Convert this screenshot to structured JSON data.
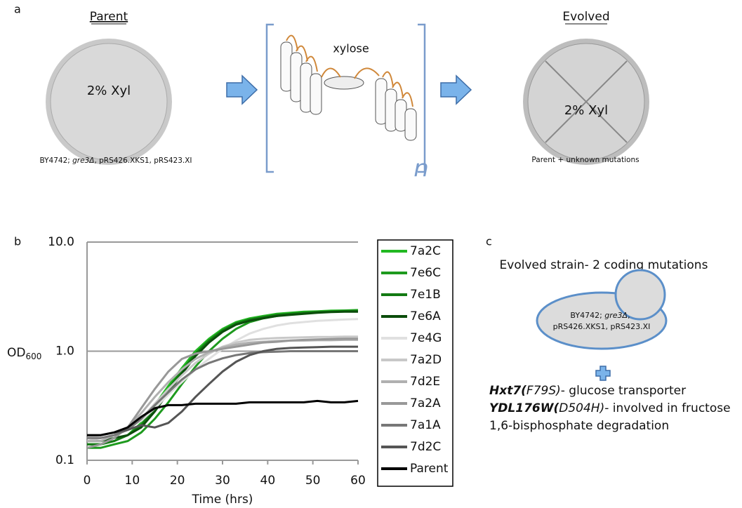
{
  "panel_a": {
    "label": "a",
    "parent_title": "Parent",
    "parent_plate": "2% Xyl",
    "parent_caption": [
      "BY4742; ",
      "gre3Δ",
      ", pRS426.XKS1, pRS423.XI"
    ],
    "transfer_label": "xylose",
    "repeat_symbol": "n",
    "evolved_title": "Evolved",
    "evolved_plate": "2% Xyl",
    "evolved_caption": "Parent + unknown mutations"
  },
  "panel_b": {
    "label": "b"
  },
  "chart_data": {
    "type": "line",
    "x_label": "Time (hrs)",
    "y_label": {
      "text": "OD",
      "subscript": "600"
    },
    "yscale": "log",
    "grid": true,
    "legend": "right",
    "xlim": [
      0,
      60
    ],
    "xticks": [
      0,
      10,
      20,
      30,
      40,
      50,
      60
    ],
    "ylim": [
      0.1,
      10
    ],
    "yticks": [
      0.1,
      {
        "value": 1,
        "label": "1.0"
      },
      {
        "value": 10,
        "label": "10.0"
      }
    ],
    "x": [
      0,
      3,
      6,
      9,
      12,
      15,
      18,
      21,
      24,
      27,
      30,
      33,
      36,
      39,
      42,
      45,
      48,
      51,
      54,
      57,
      60
    ],
    "series": [
      {
        "name": "7a2C",
        "color": "#22b822",
        "values": [
          0.14,
          0.14,
          0.15,
          0.17,
          0.22,
          0.32,
          0.48,
          0.7,
          1.0,
          1.3,
          1.6,
          1.85,
          2.0,
          2.1,
          2.2,
          2.25,
          2.3,
          2.32,
          2.35,
          2.36,
          2.38
        ]
      },
      {
        "name": "7e6C",
        "color": "#1e9a1e",
        "values": [
          0.13,
          0.13,
          0.14,
          0.15,
          0.18,
          0.24,
          0.34,
          0.5,
          0.72,
          1.0,
          1.3,
          1.6,
          1.85,
          2.0,
          2.1,
          2.2,
          2.25,
          2.3,
          2.32,
          2.35,
          2.37
        ]
      },
      {
        "name": "7e1B",
        "color": "#137a13",
        "values": [
          0.14,
          0.14,
          0.15,
          0.17,
          0.21,
          0.3,
          0.45,
          0.66,
          0.95,
          1.25,
          1.55,
          1.8,
          1.95,
          2.05,
          2.15,
          2.2,
          2.25,
          2.28,
          2.3,
          2.32,
          2.33
        ]
      },
      {
        "name": "7e6A",
        "color": "#0b4d0b",
        "values": [
          0.15,
          0.15,
          0.16,
          0.17,
          0.2,
          0.28,
          0.42,
          0.62,
          0.9,
          1.2,
          1.5,
          1.75,
          1.9,
          2.0,
          2.1,
          2.15,
          2.2,
          2.25,
          2.28,
          2.3,
          2.3
        ]
      },
      {
        "name": "7e4G",
        "color": "#e0e0e0",
        "values": [
          0.16,
          0.17,
          0.18,
          0.2,
          0.23,
          0.3,
          0.4,
          0.52,
          0.68,
          0.85,
          1.05,
          1.25,
          1.45,
          1.6,
          1.72,
          1.8,
          1.85,
          1.9,
          1.92,
          1.95,
          1.97
        ]
      },
      {
        "name": "7a2D",
        "color": "#c8c8c8",
        "values": [
          0.15,
          0.16,
          0.17,
          0.19,
          0.24,
          0.33,
          0.45,
          0.6,
          0.78,
          0.95,
          1.1,
          1.2,
          1.27,
          1.3,
          1.32,
          1.33,
          1.34,
          1.35,
          1.35,
          1.36,
          1.36
        ]
      },
      {
        "name": "7d2E",
        "color": "#b0b0b0",
        "values": [
          0.15,
          0.15,
          0.17,
          0.2,
          0.27,
          0.38,
          0.52,
          0.68,
          0.85,
          0.98,
          1.08,
          1.15,
          1.2,
          1.22,
          1.24,
          1.25,
          1.25,
          1.26,
          1.26,
          1.27,
          1.27
        ]
      },
      {
        "name": "7a2A",
        "color": "#989898",
        "values": [
          0.13,
          0.14,
          0.16,
          0.2,
          0.3,
          0.45,
          0.65,
          0.85,
          0.95,
          1.0,
          1.05,
          1.1,
          1.15,
          1.2,
          1.22,
          1.25,
          1.27,
          1.28,
          1.29,
          1.3,
          1.3
        ]
      },
      {
        "name": "7a1A",
        "color": "#777777",
        "values": [
          0.16,
          0.16,
          0.17,
          0.19,
          0.24,
          0.32,
          0.42,
          0.55,
          0.68,
          0.78,
          0.86,
          0.92,
          0.96,
          0.98,
          0.99,
          1.0,
          1.0,
          1.0,
          1.0,
          1.0,
          1.0
        ]
      },
      {
        "name": "7d2C",
        "color": "#555555",
        "values": [
          0.17,
          0.17,
          0.18,
          0.19,
          0.21,
          0.2,
          0.22,
          0.28,
          0.38,
          0.5,
          0.65,
          0.8,
          0.92,
          1.0,
          1.05,
          1.07,
          1.08,
          1.09,
          1.1,
          1.1,
          1.1
        ]
      },
      {
        "name": "Parent",
        "color": "#000000",
        "values": [
          0.17,
          0.17,
          0.18,
          0.2,
          0.25,
          0.3,
          0.32,
          0.32,
          0.33,
          0.33,
          0.33,
          0.33,
          0.34,
          0.34,
          0.34,
          0.34,
          0.34,
          0.35,
          0.34,
          0.34,
          0.35
        ]
      }
    ]
  },
  "panel_c": {
    "label": "c",
    "title": "Evolved strain- 2 coding mutations",
    "cell_text": [
      [
        "BY4742; ",
        "gre3Δ",
        ","
      ],
      "pRS426.XKS1, pRS423.XI"
    ],
    "mutations": [
      [
        "Hxt7(",
        "F79S)",
        "- glucose transporter"
      ],
      [
        "YDL176W(",
        "D504H)",
        "- involved in fructose"
      ]
    ],
    "mutation_note": "1,6-bisphosphate degradation"
  }
}
